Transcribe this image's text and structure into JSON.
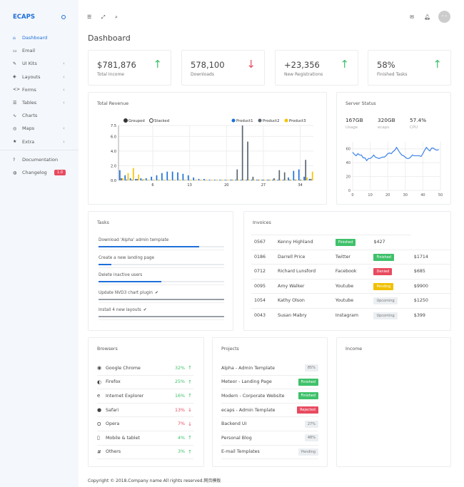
{
  "brand": "ECAPS",
  "sidebar": {
    "items": [
      {
        "label": "Dashboard",
        "icon": "home-icon",
        "glyph": "⌂",
        "active": true,
        "chevron": false
      },
      {
        "label": "Email",
        "icon": "inbox-icon",
        "glyph": "▭",
        "chevron": false
      },
      {
        "label": "UI Kits",
        "icon": "pin-icon",
        "glyph": "✎",
        "chevron": true
      },
      {
        "label": "Layouts",
        "icon": "layers-icon",
        "glyph": "◈",
        "chevron": true
      },
      {
        "label": "Forms",
        "icon": "code-icon",
        "glyph": "<>",
        "chevron": true
      },
      {
        "label": "Tables",
        "icon": "list-icon",
        "glyph": "☰",
        "chevron": true
      },
      {
        "label": "Charts",
        "icon": "chart-line-icon",
        "glyph": "∿",
        "chevron": false
      },
      {
        "label": "Maps",
        "icon": "target-icon",
        "glyph": "◎",
        "chevron": true
      },
      {
        "label": "Extra",
        "icon": "star-icon",
        "glyph": "★",
        "chevron": true
      }
    ],
    "bottom": [
      {
        "label": "Documentation",
        "icon": "help-icon",
        "glyph": "?"
      },
      {
        "label": "Changelog",
        "icon": "globe-icon",
        "glyph": "◍",
        "badge": "1.0"
      }
    ]
  },
  "page_title": "Dashboard",
  "stats": [
    {
      "value": "$781,876",
      "label": "Total Income",
      "trend": "up"
    },
    {
      "value": "578,100",
      "label": "Downloads",
      "trend": "down"
    },
    {
      "value": "+23,356",
      "label": "New Registrations",
      "trend": "up"
    },
    {
      "value": "58%",
      "label": "Finished Tasks",
      "trend": "up"
    }
  ],
  "colors": {
    "accent": "#1e6fd9",
    "up": "#3fc16a",
    "down": "#e84a5f",
    "product1": "#1e6fd9",
    "product2": "#5a6470",
    "product3": "#f5c400"
  },
  "revenue": {
    "title": "Total Revenue",
    "modes": [
      "Grouped",
      "Stacked"
    ],
    "selected_mode": "Grouped"
  },
  "server": {
    "title": "Server Status",
    "stats": [
      {
        "value": "167GB",
        "label": "Usage"
      },
      {
        "value": "320GB",
        "label": "ecaps"
      },
      {
        "value": "57.4%",
        "label": "CPU"
      }
    ]
  },
  "chart_data": [
    {
      "type": "bar",
      "title": "",
      "legend": "top-right",
      "series": [
        {
          "name": "Product1",
          "values": [
            1.4,
            0.7,
            0.3,
            0.2,
            0.3,
            0.3,
            0.5,
            0.7,
            1.0,
            1.2,
            1.2,
            1.1,
            0.9,
            0.7,
            0.4,
            0.2,
            0.2,
            0.1,
            0.1,
            0.1,
            0.1,
            0.1,
            0.1,
            0.1,
            0.1,
            0.1,
            0.1,
            0.1,
            0.1,
            0.1,
            0.1,
            0.1,
            0.4,
            1.3,
            1.5,
            0.5,
            0.2
          ]
        },
        {
          "name": "Product2",
          "values": [
            0.3,
            0.1,
            0.1,
            0.2,
            0.1,
            0.05,
            0.05,
            0.05,
            0.05,
            0.05,
            0.05,
            0.05,
            0.05,
            0.05,
            0.05,
            0.05,
            0.05,
            0.05,
            0.05,
            0.05,
            0.05,
            0.1,
            1.5,
            7.5,
            5.3,
            0.5,
            0.1,
            0.1,
            0.1,
            0.3,
            1.4,
            1.1,
            0.1,
            0.1,
            0.1,
            2.8,
            0.2
          ]
        },
        {
          "name": "Product3",
          "values": [
            0.3,
            1.0,
            1.7,
            0.8,
            0.2,
            0.1,
            0.1,
            0.1,
            0.1,
            0.1,
            0.1,
            0.1,
            0.1,
            0.1,
            0.1,
            0.1,
            0.1,
            0.1,
            0.1,
            0.1,
            0.1,
            0.1,
            0.1,
            0.1,
            0.1,
            0.1,
            0.1,
            0.1,
            0.1,
            0.1,
            0.1,
            0.1,
            0.1,
            0.1,
            0.1,
            0.4,
            1.2
          ]
        }
      ],
      "x_start": 0,
      "xticks": [
        6,
        13,
        20,
        27,
        34
      ],
      "yticks": [
        "0.0",
        "2.0",
        "4.0",
        "6.0",
        "7.5"
      ],
      "ylim": [
        0,
        7.5
      ],
      "grid": true
    },
    {
      "type": "line",
      "title": "",
      "xlim": [
        0,
        50
      ],
      "ylim": [
        0,
        70
      ],
      "xticks": [
        0,
        10,
        20,
        30,
        40,
        50
      ],
      "yticks": [
        0,
        20,
        40,
        60
      ],
      "grid": true,
      "values": [
        55,
        52,
        50,
        53,
        51,
        51,
        47,
        47,
        43,
        46,
        46,
        48,
        51,
        48,
        47,
        46,
        47,
        48,
        48,
        50,
        53,
        54,
        53,
        56,
        58,
        62,
        58,
        54,
        51,
        50,
        48,
        46,
        46,
        48,
        51,
        50,
        50,
        50,
        50,
        49,
        53,
        58,
        62,
        59,
        57,
        61,
        61,
        59,
        58,
        59
      ]
    }
  ],
  "tasks": {
    "title": "Tasks",
    "items": [
      {
        "label": "Download 'Alpha' admin template",
        "progress": 80,
        "done": false
      },
      {
        "label": "Create a new landing page",
        "progress": 10,
        "done": false
      },
      {
        "label": "Delete inactive users",
        "progress": 50,
        "done": false
      },
      {
        "label": "Update NVD3 chart plugin",
        "progress": 100,
        "done": true
      },
      {
        "label": "Install 4 new layouts",
        "progress": 100,
        "done": true
      }
    ]
  },
  "invoices": {
    "title": "Invoices",
    "rows": [
      [
        "0567",
        "Kenny Highland",
        "",
        "Finished",
        "$427"
      ],
      [
        "0186",
        "Darrell Price",
        "Twitter",
        "Finished",
        "$1714"
      ],
      [
        "0712",
        "Richard Lunsford",
        "Facebook",
        "Denied",
        "$685"
      ],
      [
        "0095",
        "Amy Walker",
        "Youtube",
        "Pending",
        "$9900"
      ],
      [
        "1054",
        "Kathy Olson",
        "Youtube",
        "Upcoming",
        "$1250"
      ],
      [
        "0043",
        "Susan Mabry",
        "Instagram",
        "Upcoming",
        "$399"
      ]
    ]
  },
  "browsers": {
    "title": "Browsers",
    "items": [
      {
        "name": "Google Chrome",
        "pct": "32%",
        "trend": "up",
        "glyph": "◉"
      },
      {
        "name": "Firefox",
        "pct": "25%",
        "trend": "up",
        "glyph": "◐"
      },
      {
        "name": "Internet Explorer",
        "pct": "16%",
        "trend": "up",
        "glyph": "e"
      },
      {
        "name": "Safari",
        "pct": "13%",
        "trend": "down",
        "glyph": "●"
      },
      {
        "name": "Opera",
        "pct": "7%",
        "trend": "down",
        "glyph": "O"
      },
      {
        "name": "Mobile & tablet",
        "pct": "4%",
        "trend": "up",
        "glyph": "▯"
      },
      {
        "name": "Others",
        "pct": "3%",
        "trend": "up",
        "glyph": "#"
      }
    ]
  },
  "projects": {
    "title": "Projects",
    "items": [
      {
        "name": "Alpha - Admin Template",
        "tag": "85%",
        "kind": "gr"
      },
      {
        "name": "Meteor - Landing Page",
        "tag": "Finished",
        "kind": "g"
      },
      {
        "name": "Modern - Corporate Website",
        "tag": "Finished",
        "kind": "g"
      },
      {
        "name": "ecaps - Admin Template",
        "tag": "Rejected",
        "kind": "r"
      },
      {
        "name": "Backend UI",
        "tag": "27%",
        "kind": "gr"
      },
      {
        "name": "Personal Blog",
        "tag": "48%",
        "kind": "gr"
      },
      {
        "name": "E-mail Templates",
        "tag": "Pending",
        "kind": "gr"
      }
    ]
  },
  "income": {
    "title": "Income"
  },
  "footer": "Copyright © 2018.Company name All rights reserved.网页模板"
}
